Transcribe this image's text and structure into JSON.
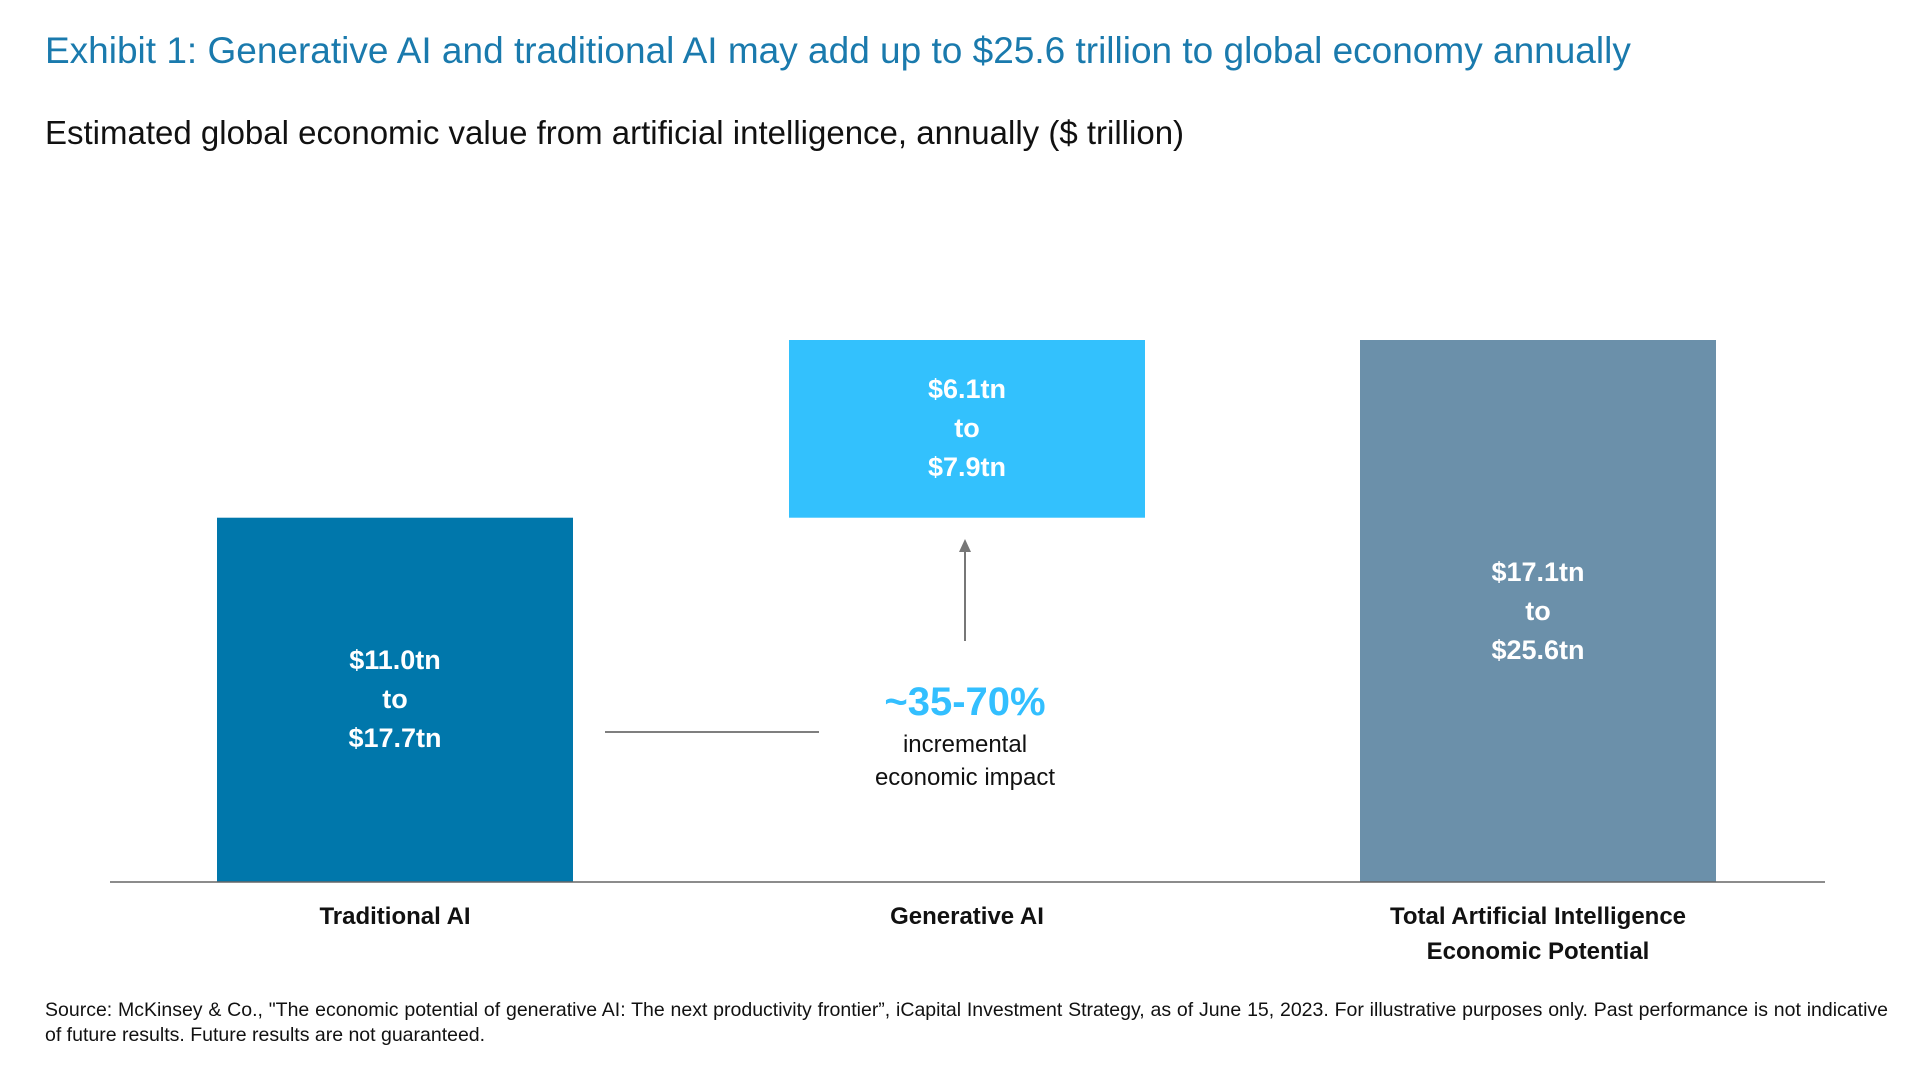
{
  "chart_data": {
    "type": "waterfall",
    "title": "Exhibit 1: Generative AI and traditional AI may add up to $25.6 trillion to global economy annually",
    "subtitle": "Estimated global economic value from artificial intelligence, annually ($ trillion)",
    "categories": [
      "Traditional AI",
      "Generative AI",
      "Total Artificial Intelligence Economic Potential"
    ],
    "measure": [
      "relative",
      "relative",
      "total"
    ],
    "low": [
      11.0,
      6.1,
      17.1
    ],
    "high": [
      17.7,
      7.9,
      25.6
    ],
    "low_labels": [
      "$11.0tn",
      "$6.1tn",
      "$17.1tn"
    ],
    "high_labels": [
      "$17.7tn",
      "$7.9tn",
      "$25.6tn"
    ],
    "range_word": "to",
    "colors": [
      "#0077ab",
      "#33c1fd",
      "#6b90aa"
    ],
    "annotation": {
      "headline": "~35-70%",
      "lines": [
        "incremental",
        "economic impact"
      ]
    },
    "source": "Source: McKinsey & Co., \"The economic potential of generative AI: The next productivity frontier”, iCapital Investment Strategy, as of June 15, 2023. For illustrative purposes only. Past performance is not indicative of future results. Future results are not guaranteed."
  }
}
